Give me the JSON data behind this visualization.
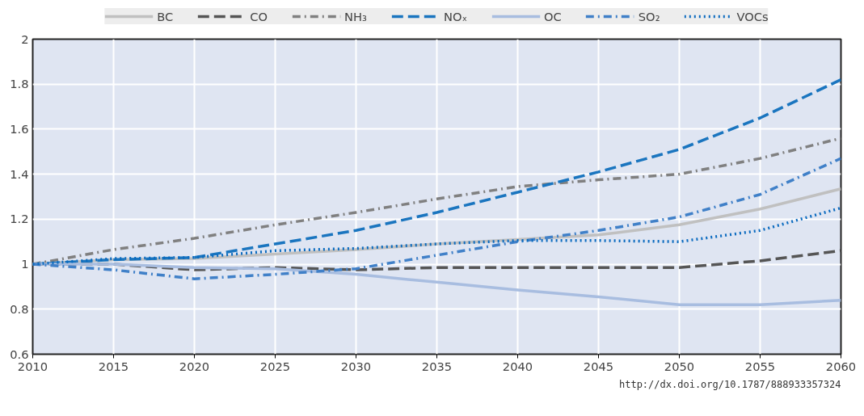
{
  "chart_data": {
    "type": "line",
    "x": [
      2010,
      2015,
      2020,
      2025,
      2030,
      2035,
      2040,
      2045,
      2050,
      2055,
      2060
    ],
    "xlim": [
      2010,
      2060
    ],
    "xticks": [
      2010,
      2015,
      2020,
      2025,
      2030,
      2035,
      2040,
      2045,
      2050,
      2055,
      2060
    ],
    "ylim": [
      0.6,
      2
    ],
    "yticks": [
      0.6,
      0.8,
      1,
      1.2,
      1.4,
      1.6,
      1.8,
      2
    ],
    "grid": true,
    "legend": "top",
    "annotations": [
      "http://dx.doi.org/10.1787/888933357324"
    ],
    "series": [
      {
        "name": "BC",
        "color": "#c0c0c0",
        "line_style": "solid",
        "values": [
          1.0,
          1.02,
          1.025,
          1.045,
          1.065,
          1.09,
          1.11,
          1.13,
          1.175,
          1.245,
          1.335
        ]
      },
      {
        "name": "CO",
        "color": "#555555",
        "line_style": "dashed",
        "values": [
          1.0,
          1.0,
          0.975,
          0.985,
          0.975,
          0.985,
          0.985,
          0.985,
          0.985,
          1.015,
          1.06
        ]
      },
      {
        "name": "NH₃",
        "color": "#808080",
        "line_style": "dashdot",
        "values": [
          1.0,
          1.065,
          1.115,
          1.175,
          1.23,
          1.29,
          1.345,
          1.375,
          1.4,
          1.47,
          1.56
        ]
      },
      {
        "name": "NOₓ",
        "color": "#1a75bf",
        "line_style": "dashed",
        "values": [
          1.0,
          1.02,
          1.03,
          1.09,
          1.15,
          1.23,
          1.32,
          1.41,
          1.51,
          1.65,
          1.82
        ]
      },
      {
        "name": "OC",
        "color": "#a8bde0",
        "line_style": "solid",
        "values": [
          1.0,
          1.0,
          0.985,
          0.98,
          0.955,
          0.92,
          0.885,
          0.855,
          0.82,
          0.82,
          0.84
        ]
      },
      {
        "name": "SO₂",
        "color": "#4080c8",
        "line_style": "dashdot",
        "values": [
          1.0,
          0.975,
          0.935,
          0.955,
          0.98,
          1.04,
          1.1,
          1.15,
          1.21,
          1.31,
          1.47
        ]
      },
      {
        "name": "VOCs",
        "color": "#0a6abf",
        "line_style": "dotted",
        "values": [
          1.0,
          1.025,
          1.03,
          1.06,
          1.07,
          1.09,
          1.105,
          1.105,
          1.1,
          1.15,
          1.25
        ]
      }
    ]
  }
}
